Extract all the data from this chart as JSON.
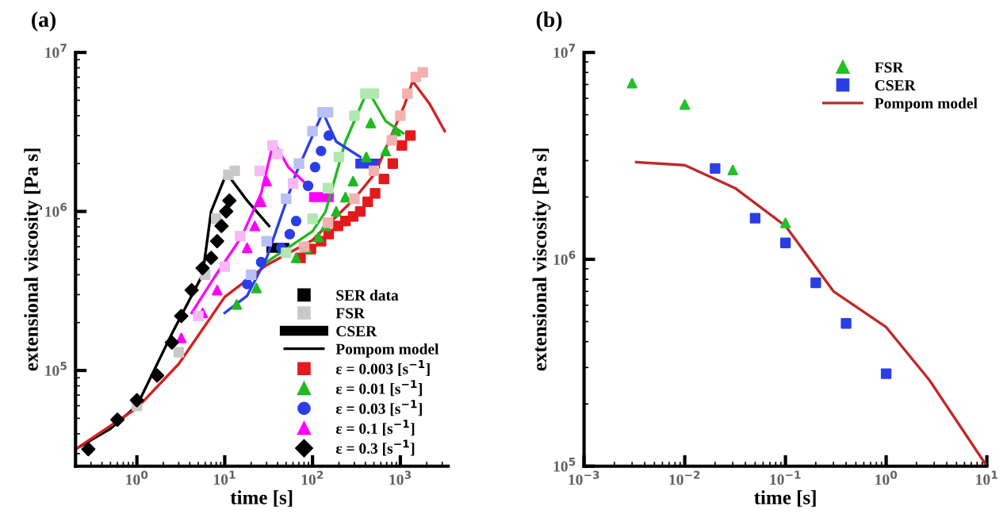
{
  "chart_data": [
    {
      "type": "scatter",
      "title": "(a)",
      "xlabel": "time [s]",
      "ylabel": "extensional viscosity [Pa s]",
      "log": "xy",
      "legend": "bottom right",
      "grid": false,
      "xlim": [
        0.2,
        3500
      ],
      "ylim": [
        25000,
        10000000
      ],
      "xticks": [
        {
          "value": 1,
          "label": "10$^{0}$"
        },
        {
          "value": 10,
          "label": "10$^{1}$"
        },
        {
          "value": 100,
          "label": "10$^{2}$"
        },
        {
          "value": 1000,
          "label": "10$^{3}$"
        }
      ],
      "yticks": [
        {
          "value": 100000,
          "label": "10$^{5}$"
        },
        {
          "value": 1000000,
          "label": "10$^{6}$"
        },
        {
          "value": 10000000,
          "label": "10$^{7}$"
        }
      ],
      "series": [
        {
          "name": "SER data",
          "marker": "square",
          "color": "#000000"
        },
        {
          "name": "FSR",
          "marker": "square",
          "color": "#c8c8c8",
          "x": [
            1,
            3,
            6,
            8,
            11,
            13
          ],
          "values": [
            60000,
            130000,
            400000,
            900000,
            1700000,
            1800000
          ]
        },
        {
          "name": "CSER",
          "type": "line",
          "color": "#000000",
          "x": [
            34,
            48
          ],
          "values": [
            590000,
            590000
          ]
        },
        {
          "name": "Pompom model",
          "type": "line",
          "color": "#000000",
          "x": [
            0.2,
            0.5,
            1,
            2.5,
            5.6,
            7,
            10.5,
            18,
            32
          ],
          "values": [
            32000,
            43000,
            60000,
            170000,
            400000,
            1000000,
            1740000,
            1170000,
            810000
          ]
        },
        {
          "name": "ε = 0.003 [s$^{−1}$]",
          "marker": "square",
          "color": "#e31a1c",
          "x": [
            73,
            96,
            125,
            153,
            195,
            237,
            290,
            350,
            425,
            516,
            650,
            820,
            1040,
            1300
          ],
          "values": [
            510000,
            580000,
            650000,
            720000,
            810000,
            870000,
            930000,
            1000000,
            1150000,
            1300000,
            1600000,
            2000000,
            2600000,
            3000000
          ]
        },
        {
          "name": "ε = 0.01 [s$^{−1}$]",
          "marker": "triangle",
          "color": "#22b822",
          "x": [
            13.7,
            23,
            65,
            85,
            117,
            141,
            186,
            237,
            290,
            410,
            460,
            680,
            890
          ],
          "values": [
            260000,
            330000,
            510000,
            590000,
            690000,
            810000,
            1000000,
            1230000,
            1550000,
            2200000,
            3600000,
            2400000,
            3200000
          ]
        },
        {
          "name": "ε = 0.03 [s$^{−1}$]",
          "marker": "circle",
          "color": "#2a3ee8",
          "x": [
            18,
            26,
            44,
            55,
            65,
            89,
            107,
            125,
            153
          ],
          "values": [
            350000,
            480000,
            590000,
            720000,
            870000,
            1450000,
            1900000,
            2400000,
            3000000
          ]
        },
        {
          "name": "ε = 0.1 [s$^{−1}$]",
          "marker": "triangle",
          "color": "#ff00ff",
          "x": [
            3.2,
            5.6,
            8.2,
            18,
            22,
            26,
            30
          ],
          "values": [
            160000,
            230000,
            320000,
            590000,
            810000,
            1150000,
            1550000
          ]
        },
        {
          "name": "ε = 0.3 [s$^{−1}$]",
          "marker": "diamond",
          "color": "#000000",
          "x": [
            0.28,
            0.6,
            1.0,
            1.7,
            2.5,
            3.2,
            4.2,
            5.6,
            7.0,
            8.2,
            9.2,
            10.4,
            11.3
          ],
          "values": [
            32000,
            49000,
            65000,
            93000,
            150000,
            220000,
            320000,
            440000,
            510000,
            650000,
            810000,
            1000000,
            1170000
          ]
        },
        {
          "marker": "square",
          "color": "#f5b0b0",
          "x": [
            80,
            150,
            300,
            500,
            800,
            1000,
            1200,
            1500,
            1800
          ],
          "values": [
            600000,
            850000,
            1200000,
            1800000,
            2800000,
            4000000,
            5500000,
            7000000,
            7500000
          ]
        },
        {
          "marker": "square",
          "color": "#b0e8b0",
          "x": [
            50,
            100,
            150,
            200,
            300,
            400,
            500
          ],
          "values": [
            550000,
            900000,
            1400000,
            2200000,
            4000000,
            5500000,
            5500000
          ]
        },
        {
          "marker": "square",
          "color": "#b8c0f5",
          "x": [
            20,
            30,
            50,
            70,
            100,
            130,
            150
          ],
          "values": [
            400000,
            650000,
            1200000,
            2000000,
            3200000,
            4200000,
            4200000
          ]
        },
        {
          "marker": "square",
          "color": "#f8b8f8",
          "x": [
            5,
            10,
            15,
            25,
            35,
            40,
            60
          ],
          "values": [
            220000,
            450000,
            700000,
            1800000,
            2600000,
            2300000,
            1500000
          ]
        },
        {
          "type": "line",
          "color": "#ff00ff",
          "x": [
            104,
            153
          ],
          "values": [
            1230000,
            1230000
          ]
        },
        {
          "type": "line",
          "color": "#2a3ee8",
          "x": [
            350,
            516
          ],
          "values": [
            2000000,
            2000000
          ]
        },
        {
          "type": "line",
          "color": "#d62020",
          "x": [
            0.2,
            1,
            3,
            10,
            30,
            100,
            141,
            300,
            516,
            1120,
            1380,
            2180,
            3200
          ],
          "values": [
            32000,
            58000,
            110000,
            290000,
            460000,
            660000,
            800000,
            1200000,
            1740000,
            4700000,
            6600000,
            4700000,
            3200000
          ]
        },
        {
          "type": "line",
          "color": "#22b822",
          "x": [
            30,
            100,
            141,
            237,
            425,
            680,
            1080
          ],
          "values": [
            480000,
            750000,
            1000000,
            2750000,
            5800000,
            3700000,
            3100000
          ]
        },
        {
          "type": "line",
          "color": "#2a3ee8",
          "x": [
            10,
            18,
            30,
            65,
            131,
            186,
            350
          ],
          "values": [
            230000,
            295000,
            510000,
            1740000,
            4200000,
            2750000,
            2200000
          ]
        },
        {
          "type": "line",
          "color": "#ff00ff",
          "x": [
            4.2,
            8.2,
            15.5,
            26,
            36,
            53,
            89
          ],
          "values": [
            230000,
            410000,
            690000,
            1300000,
            2750000,
            1900000,
            1450000
          ]
        }
      ]
    },
    {
      "type": "scatter",
      "title": "(b)",
      "xlabel": "time [s]",
      "ylabel": "extensional viscosity [Pa s]",
      "log": "xy",
      "legend": "top right",
      "grid": false,
      "xlim": [
        0.001,
        10
      ],
      "ylim": [
        100000,
        10000000
      ],
      "xticks": [
        {
          "value": 0.001,
          "label": "10$^{−3}$"
        },
        {
          "value": 0.01,
          "label": "10$^{−2}$"
        },
        {
          "value": 0.1,
          "label": "10$^{−1}$"
        },
        {
          "value": 1,
          "label": "10$^{0}$"
        },
        {
          "value": 10,
          "label": "10$^{1}$"
        }
      ],
      "yticks": [
        {
          "value": 100000,
          "label": "10$^{5}$"
        },
        {
          "value": 1000000,
          "label": "10$^{6}$"
        },
        {
          "value": 10000000,
          "label": "10$^{7}$"
        }
      ],
      "series": [
        {
          "name": "FSR",
          "marker": "triangle",
          "color": "#22c02a",
          "x": [
            0.003,
            0.01,
            0.03,
            0.1
          ],
          "values": [
            7100000,
            5600000,
            2700000,
            1500000
          ]
        },
        {
          "name": "CSER",
          "marker": "square",
          "color": "#2a3ee8",
          "x": [
            0.02,
            0.05,
            0.1,
            0.2,
            0.4,
            1
          ],
          "values": [
            2750000,
            1580000,
            1200000,
            770000,
            490000,
            280000
          ]
        },
        {
          "name": "Pompom model",
          "type": "line",
          "color": "#c0282a",
          "x": [
            0.0033,
            0.01,
            0.032,
            0.1,
            0.3,
            1,
            2.7,
            10
          ],
          "values": [
            2950000,
            2850000,
            2200000,
            1450000,
            700000,
            470000,
            260000,
            100000
          ]
        }
      ]
    }
  ]
}
